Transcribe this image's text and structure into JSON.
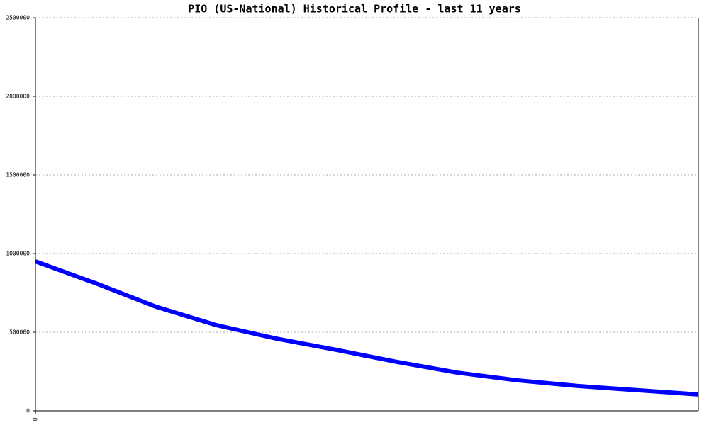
{
  "chart_data": {
    "type": "line",
    "title": "PIO (US-National) Historical Profile - last 11 years",
    "x": [
      0,
      1,
      2,
      3,
      4,
      5,
      6,
      7,
      8,
      9,
      10,
      11
    ],
    "series": [
      {
        "color": "#0000ff",
        "values": [
          950000,
          811000,
          662000,
          545000,
          459000,
          387000,
          311000,
          243000,
          194000,
          158000,
          131000,
          104000
        ]
      }
    ],
    "xlim": [
      0,
      11
    ],
    "xticks": [
      0
    ],
    "ylim": [
      0,
      2500000
    ],
    "yticks": [
      0,
      500000,
      1000000,
      1500000,
      2000000,
      2500000
    ],
    "grid": true
  }
}
